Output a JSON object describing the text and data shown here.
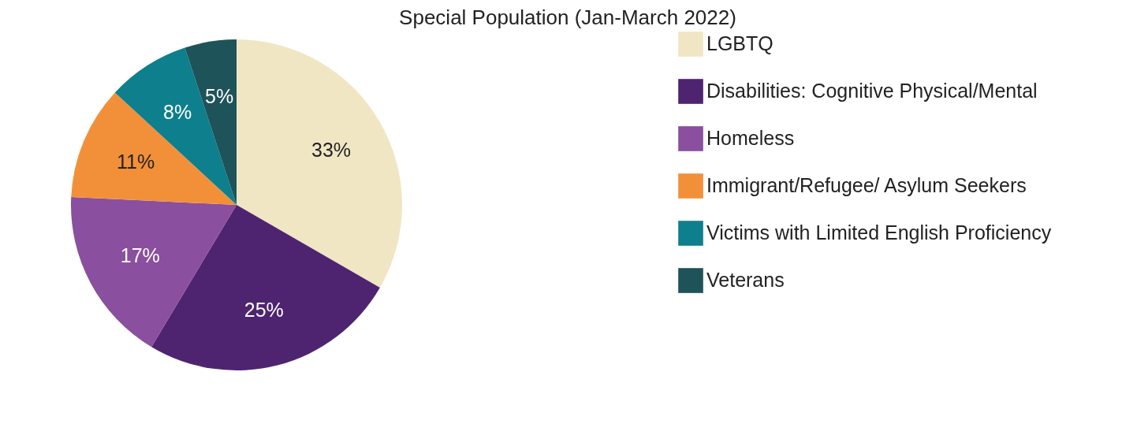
{
  "chart_data": {
    "type": "pie",
    "title": "Special Population (Jan-March 2022)",
    "categories": [
      "LGBTQ",
      "Disabilities: Cognitive Physical/Mental",
      "Homeless",
      "Immigrant/Refugee/ Asylum Seekers",
      "Victims with Limited English Proficiency",
      "Veterans"
    ],
    "values": [
      33,
      25,
      17,
      11,
      8,
      5
    ],
    "colors": [
      "#f1e6c4",
      "#4e2470",
      "#8a4f9e",
      "#f2903a",
      "#0e7f8c",
      "#1e5359"
    ],
    "value_labels": [
      "33%",
      "25%",
      "17%",
      "11%",
      "8%",
      "5%"
    ],
    "legend": "right"
  }
}
